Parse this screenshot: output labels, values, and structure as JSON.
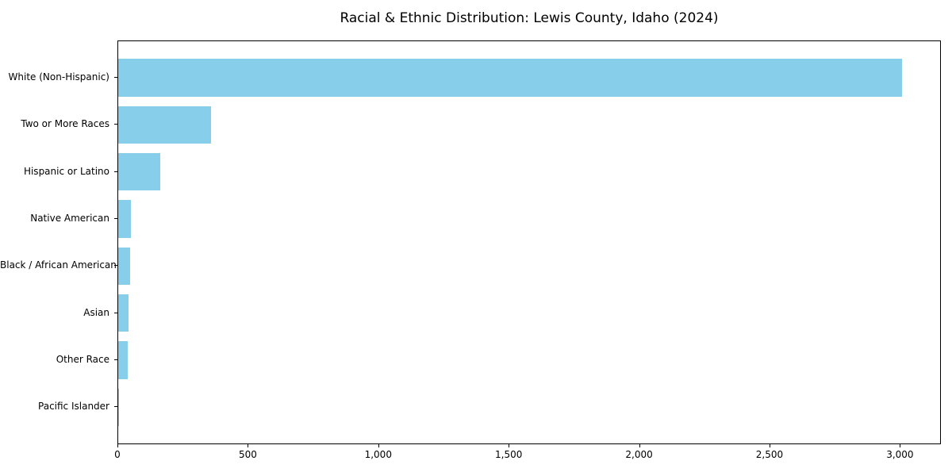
{
  "page": {
    "title": "Racial & Ethnic Distribution: Lewis County, Idaho (2024)"
  },
  "chart_data": {
    "type": "bar",
    "orientation": "horizontal",
    "title": "Racial & Ethnic Distribution: Lewis County, Idaho (2024)",
    "categories": [
      "White (Non-Hispanic)",
      "Two or More Races",
      "Hispanic or Latino",
      "Native American",
      "Black / African American",
      "Asian",
      "Other Race",
      "Pacific Islander"
    ],
    "values": [
      3005,
      355,
      160,
      50,
      45,
      40,
      35,
      2
    ],
    "bar_color": "#87CEEB",
    "xlabel": "",
    "ylabel": "",
    "xlim": [
      0,
      3157
    ],
    "x_ticks": [
      0,
      500,
      1000,
      1500,
      2000,
      2500,
      3000
    ],
    "x_tick_labels": [
      "0",
      "500",
      "1,000",
      "1,500",
      "2,000",
      "2,500",
      "3,000"
    ],
    "grid": false,
    "legend": null,
    "axis_color": "#000000",
    "background_color": "#ffffff"
  }
}
